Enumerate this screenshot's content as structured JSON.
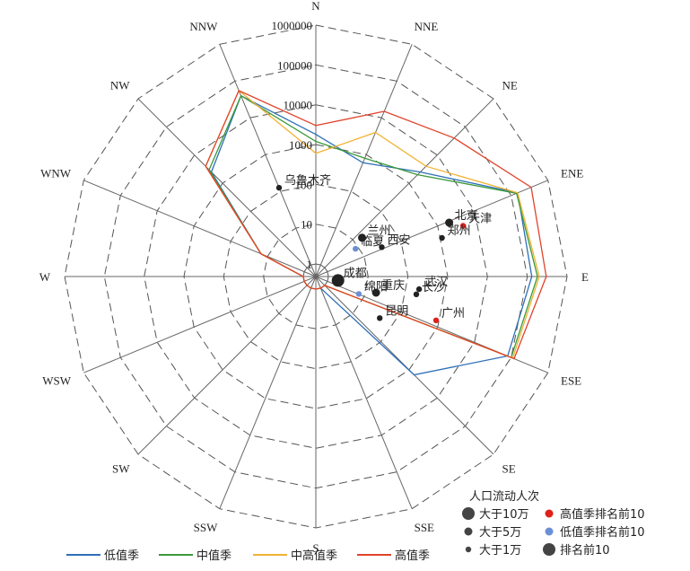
{
  "chart_data": {
    "type": "radar",
    "r_scale": "log10",
    "r_ticks": [
      "1",
      "10",
      "100",
      "1000",
      "10000",
      "100000",
      "1000000"
    ],
    "directions": [
      "N",
      "NNE",
      "NE",
      "ENE",
      "E",
      "ESE",
      "SE",
      "SSE",
      "S",
      "SSW",
      "SW",
      "WSW",
      "W",
      "WNW",
      "NW",
      "NNW"
    ],
    "series": [
      {
        "name": "低值季",
        "color": "#2e6fb7",
        "values": [
          1800,
          600,
          2500,
          150000,
          130000,
          80000,
          1500,
          1,
          1,
          1,
          1,
          1,
          1,
          15,
          2500,
          40000
        ]
      },
      {
        "name": "中值季",
        "color": "#3a9a3a",
        "values": [
          1200,
          800,
          2000,
          140000,
          180000,
          100000,
          1,
          1,
          1,
          1,
          1,
          1,
          1,
          15,
          3000,
          40000
        ]
      },
      {
        "name": "中高值季",
        "color": "#f2b233",
        "values": [
          600,
          4000,
          4000,
          150000,
          200000,
          110000,
          1,
          1,
          1,
          1,
          1,
          1,
          1,
          15,
          4000,
          55000
        ]
      },
      {
        "name": "高值季",
        "color": "#e0432b",
        "values": [
          3000,
          15000,
          40000,
          350000,
          300000,
          120000,
          1,
          1,
          1,
          1,
          1,
          1,
          1,
          15,
          4000,
          55000
        ]
      }
    ],
    "cities": [
      {
        "name": "乌鲁木齐",
        "dir": 337.5,
        "r": 2.1,
        "size": "small",
        "color": "#222222"
      },
      {
        "name": "北京",
        "dir": 68,
        "r": 3.3,
        "size": "medium",
        "color": "#222222"
      },
      {
        "name": "天津",
        "dir": 71,
        "r": 3.6,
        "size": "small",
        "color": "#e0201a"
      },
      {
        "name": "郑州",
        "dir": 73,
        "r": 3.0,
        "size": "small",
        "color": "#222222"
      },
      {
        "name": "西安",
        "dir": 66,
        "r": 1.5,
        "size": "small",
        "color": "#222222"
      },
      {
        "name": "兰州",
        "dir": 50,
        "r": 1.2,
        "size": "medium",
        "color": "#222222"
      },
      {
        "name": "临夏",
        "dir": 55,
        "r": 0.9,
        "size": "small",
        "color": "#6b8fd4"
      },
      {
        "name": "成都",
        "dir": 100,
        "r": 0.25,
        "size": "large",
        "color": "#222222"
      },
      {
        "name": "绵阳",
        "dir": 112,
        "r": 0.85,
        "size": "small",
        "color": "#6b8fd4"
      },
      {
        "name": "重庆",
        "dir": 105,
        "r": 1.25,
        "size": "medium",
        "color": "#222222"
      },
      {
        "name": "武汉",
        "dir": 97,
        "r": 2.3,
        "size": "small",
        "color": "#222222"
      },
      {
        "name": "长沙",
        "dir": 100,
        "r": 2.25,
        "size": "small",
        "color": "#222222"
      },
      {
        "name": "昆明",
        "dir": 123,
        "r": 1.6,
        "size": "small",
        "color": "#222222"
      },
      {
        "name": "广州",
        "dir": 110,
        "r": 2.9,
        "size": "small",
        "color": "#e0201a"
      }
    ],
    "size_legend": {
      "title": "人口流动人次",
      "items": [
        {
          "label": "大于10万",
          "size": "large",
          "color": "#444444"
        },
        {
          "label": "大于5万",
          "size": "medium",
          "color": "#444444"
        },
        {
          "label": "大于1万",
          "size": "small",
          "color": "#444444"
        },
        {
          "label": "高值季排名前10",
          "size": "medium",
          "color": "#e0201a"
        },
        {
          "label": "低值季排名前10",
          "size": "medium",
          "color": "#6b8fd4"
        },
        {
          "label": "排名前10",
          "size": "large",
          "color": "#444444"
        }
      ]
    },
    "legend_position": "bottom",
    "grid": true
  }
}
